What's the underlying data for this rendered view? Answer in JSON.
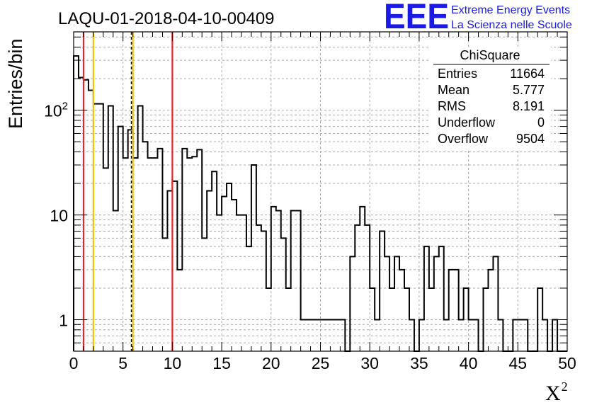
{
  "chart_title": "LAQU-01-2018-04-10-00409",
  "logo": {
    "mark": "EEE",
    "line1": "Extreme Energy Events",
    "line2": "La Scienza nelle Scuole"
  },
  "stats": {
    "title": "ChiSquare",
    "rows": [
      {
        "label": "Entries",
        "value": "11664"
      },
      {
        "label": "Mean",
        "value": "5.777"
      },
      {
        "label": "RMS",
        "value": "8.191"
      },
      {
        "label": "Underflow",
        "value": "0"
      },
      {
        "label": "Overflow",
        "value": "9504"
      }
    ]
  },
  "colors": {
    "histogram": "#000000",
    "red_line": "#e8262a",
    "orange_line": "#f2c012",
    "grid": "#a8a8a8",
    "logo": "#1a1ae6"
  },
  "chart_data": {
    "type": "bar",
    "style": "step-histogram",
    "title": "LAQU-01-2018-04-10-00409",
    "xlabel": "X",
    "xlabel_superscript": "2",
    "ylabel": "Entries/bin",
    "xlim": [
      0,
      50
    ],
    "ylim": [
      0.5,
      560
    ],
    "y_scale": "log",
    "grid": true,
    "x_ticks": [
      "0",
      "5",
      "10",
      "15",
      "20",
      "25",
      "30",
      "35",
      "40",
      "45",
      "50"
    ],
    "y_ticks": [
      {
        "value": 1,
        "label": "1",
        "sup": ""
      },
      {
        "value": 10,
        "label": "10",
        "sup": ""
      },
      {
        "value": 100,
        "label": "10",
        "sup": "2"
      }
    ],
    "bin_width": 0.5,
    "values": [
      330,
      205,
      195,
      155,
      115,
      115,
      28,
      110,
      11,
      70,
      35,
      65,
      35,
      110,
      50,
      35,
      35,
      43,
      6,
      17,
      21,
      3,
      43,
      35,
      36,
      42,
      6,
      17,
      26,
      10,
      15,
      20,
      14,
      10,
      10,
      5,
      30,
      8,
      7,
      2,
      12,
      11,
      6,
      2,
      11,
      11,
      1,
      1,
      1,
      1,
      1,
      1,
      1,
      1,
      1,
      0,
      4,
      8,
      12,
      8,
      2,
      1,
      7,
      4,
      2,
      4,
      3,
      2,
      1,
      0,
      1,
      5,
      2,
      4,
      5,
      1,
      3,
      3,
      1,
      2,
      1,
      1,
      0,
      2,
      3,
      4,
      1,
      0,
      0,
      1,
      1,
      1,
      0,
      0,
      2,
      1,
      0,
      1,
      0,
      0
    ],
    "vertical_lines": [
      {
        "x": 1,
        "color": "red",
        "style": "solid"
      },
      {
        "x": 2,
        "color": "orange",
        "style": "solid"
      },
      {
        "x": 6,
        "color": "orange",
        "style": "solid"
      },
      {
        "x": 5.85,
        "color": "black",
        "style": "dashed"
      },
      {
        "x": 10,
        "color": "red",
        "style": "solid"
      }
    ]
  }
}
